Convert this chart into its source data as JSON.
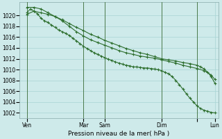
{
  "title": "Pression niveau de la mer( hPa )",
  "bg_color": "#ceeaea",
  "grid_color": "#a8d4d4",
  "line_color": "#2d6e2d",
  "ylabel_values": [
    1002,
    1004,
    1006,
    1008,
    1010,
    1012,
    1014,
    1016,
    1018,
    1020
  ],
  "ylim": [
    1001.0,
    1022.5
  ],
  "xlim": [
    0,
    56
  ],
  "xtick_positions": [
    2,
    18,
    24,
    40,
    50,
    55
  ],
  "xtick_labels": [
    "Ven",
    "Mar",
    "Sam",
    "Dim",
    "",
    "Lun"
  ],
  "vline_positions": [
    2,
    18,
    24,
    40,
    50
  ],
  "line1_x": [
    2,
    3,
    4,
    5,
    6,
    7,
    8,
    9,
    10,
    11,
    12,
    13,
    14,
    15,
    16,
    17,
    18,
    19,
    20,
    21,
    22,
    23,
    24,
    25,
    26,
    27,
    28,
    29,
    30,
    31,
    32,
    33,
    34,
    35,
    36,
    37,
    38,
    39,
    40,
    41,
    42,
    43,
    44,
    45,
    46,
    47,
    48,
    49,
    50,
    51,
    52,
    53,
    54,
    55
  ],
  "line1_y": [
    1020.5,
    1021.2,
    1020.8,
    1020.3,
    1019.5,
    1019.0,
    1018.7,
    1018.2,
    1017.8,
    1017.3,
    1017.0,
    1016.7,
    1016.3,
    1015.8,
    1015.3,
    1014.8,
    1014.3,
    1013.9,
    1013.5,
    1013.1,
    1012.8,
    1012.5,
    1012.2,
    1011.9,
    1011.7,
    1011.4,
    1011.2,
    1011.0,
    1010.8,
    1010.7,
    1010.5,
    1010.5,
    1010.4,
    1010.3,
    1010.3,
    1010.2,
    1010.1,
    1010.0,
    1009.8,
    1009.5,
    1009.2,
    1008.7,
    1008.0,
    1007.2,
    1006.4,
    1005.5,
    1004.7,
    1004.0,
    1003.3,
    1002.8,
    1002.5,
    1002.3,
    1002.1,
    1002.0
  ],
  "line2_x": [
    2,
    4,
    6,
    8,
    10,
    12,
    14,
    16,
    18,
    20,
    22,
    24,
    26,
    28,
    30,
    32,
    34,
    36,
    38,
    40,
    42,
    44,
    46,
    48,
    50,
    52,
    54,
    55
  ],
  "line2_y": [
    1021.5,
    1021.5,
    1021.2,
    1020.5,
    1019.8,
    1019.0,
    1018.0,
    1017.0,
    1016.2,
    1015.5,
    1015.0,
    1014.5,
    1014.0,
    1013.5,
    1013.1,
    1012.8,
    1012.5,
    1012.3,
    1012.1,
    1011.8,
    1011.5,
    1011.2,
    1010.8,
    1010.5,
    1010.2,
    1009.8,
    1009.0,
    1008.2
  ],
  "line3_x": [
    2,
    4,
    6,
    8,
    10,
    12,
    14,
    16,
    18,
    20,
    22,
    24,
    26,
    28,
    30,
    32,
    34,
    36,
    38,
    40,
    42,
    44,
    46,
    48,
    50,
    51,
    52,
    53,
    54,
    55
  ],
  "line3_y": [
    1020.2,
    1020.8,
    1020.5,
    1020.2,
    1019.8,
    1019.2,
    1018.5,
    1017.8,
    1017.2,
    1016.5,
    1016.0,
    1015.4,
    1014.9,
    1014.4,
    1013.9,
    1013.5,
    1013.1,
    1012.8,
    1012.4,
    1012.0,
    1011.8,
    1011.6,
    1011.3,
    1011.1,
    1010.8,
    1010.5,
    1010.1,
    1009.5,
    1008.7,
    1007.5
  ]
}
